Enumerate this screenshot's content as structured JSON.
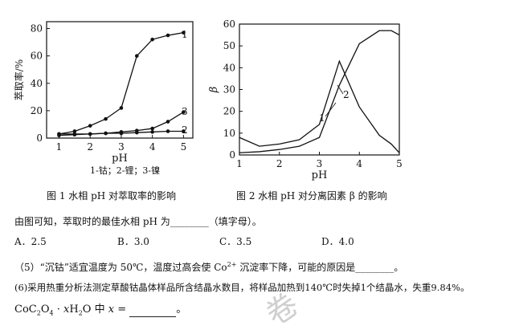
{
  "charts": [
    {
      "type": "line",
      "ylabel": "萃取率/%",
      "xlabel": "pH",
      "xlim": [
        0.6,
        5.3
      ],
      "ylim": [
        0,
        85
      ],
      "xticks": [
        1,
        2,
        3,
        4,
        5
      ],
      "yticks": [
        0,
        20,
        40,
        60,
        80
      ],
      "series": [
        {
          "name": "1",
          "x": [
            1,
            1.5,
            2,
            2.5,
            3,
            3.5,
            4,
            4.5,
            5
          ],
          "y": [
            3,
            5,
            9,
            14,
            22,
            60,
            72,
            75,
            77
          ]
        },
        {
          "name": "2",
          "x": [
            1,
            1.5,
            2,
            2.5,
            3,
            3.5,
            4,
            4.5,
            5
          ],
          "y": [
            2,
            2.5,
            3,
            3.5,
            3.5,
            4,
            4.5,
            5,
            5
          ]
        },
        {
          "name": "3",
          "x": [
            1,
            1.5,
            2,
            2.5,
            3,
            3.5,
            4,
            4.5,
            5
          ],
          "y": [
            3,
            3,
            3,
            3.5,
            4.5,
            5.5,
            7,
            12,
            19
          ]
        }
      ],
      "legend_note": "1-钴；2-锂；3-镍",
      "caption": "图 1 水相 pH 对萃取率的影响"
    },
    {
      "type": "line",
      "ylabel": "β",
      "xlabel": "pH",
      "xlim": [
        1,
        5
      ],
      "ylim": [
        0,
        60
      ],
      "xticks": [
        1,
        2,
        3,
        4,
        5
      ],
      "yticks": [
        0,
        10,
        20,
        30,
        40,
        50,
        60
      ],
      "series": [
        {
          "name": "1",
          "x": [
            1,
            1.5,
            2,
            2.5,
            3,
            3.5,
            4,
            4.5,
            4.8,
            5
          ],
          "y": [
            8,
            4,
            5,
            7,
            14,
            43,
            22,
            9,
            5,
            1
          ]
        },
        {
          "name": "2",
          "x": [
            1,
            1.5,
            2,
            2.5,
            3,
            3.5,
            4,
            4.5,
            4.8,
            5
          ],
          "y": [
            1,
            1.5,
            2.5,
            4,
            8,
            32,
            51,
            57,
            57,
            55
          ]
        }
      ],
      "caption": "图 2 水相 pH 对分离因素 β 的影响"
    }
  ],
  "text": {
    "q_stem": "由图可知，萃取时的最佳水相 pH 为________（填字母）。",
    "options": [
      "A．2.5",
      "B．3.0",
      "C．3.5",
      "D．4.0"
    ],
    "q5_a": "（5）“沉钴”适宜温度为 50℃，温度过高会使 Co",
    "q5_sup": "2+",
    "q5_b": " 沉淀率下降，可能的原因是________。",
    "q6": "(6)采用热重分析法测定草酸钴晶体样品所含结晶水数目，将样品加热到140℃时失掉1个结晶水，失重9.84%。",
    "q6_f1": "CoC",
    "q6_s1": "2",
    "q6_f2": "O",
    "q6_s2": "4",
    "q6_f3": " · ",
    "q6_x1": "x",
    "q6_f4": "H",
    "q6_s3": "2",
    "q6_f5": "O 中 ",
    "q6_x2": "x",
    "q6_f6": " = "
  },
  "watermark": "卷"
}
